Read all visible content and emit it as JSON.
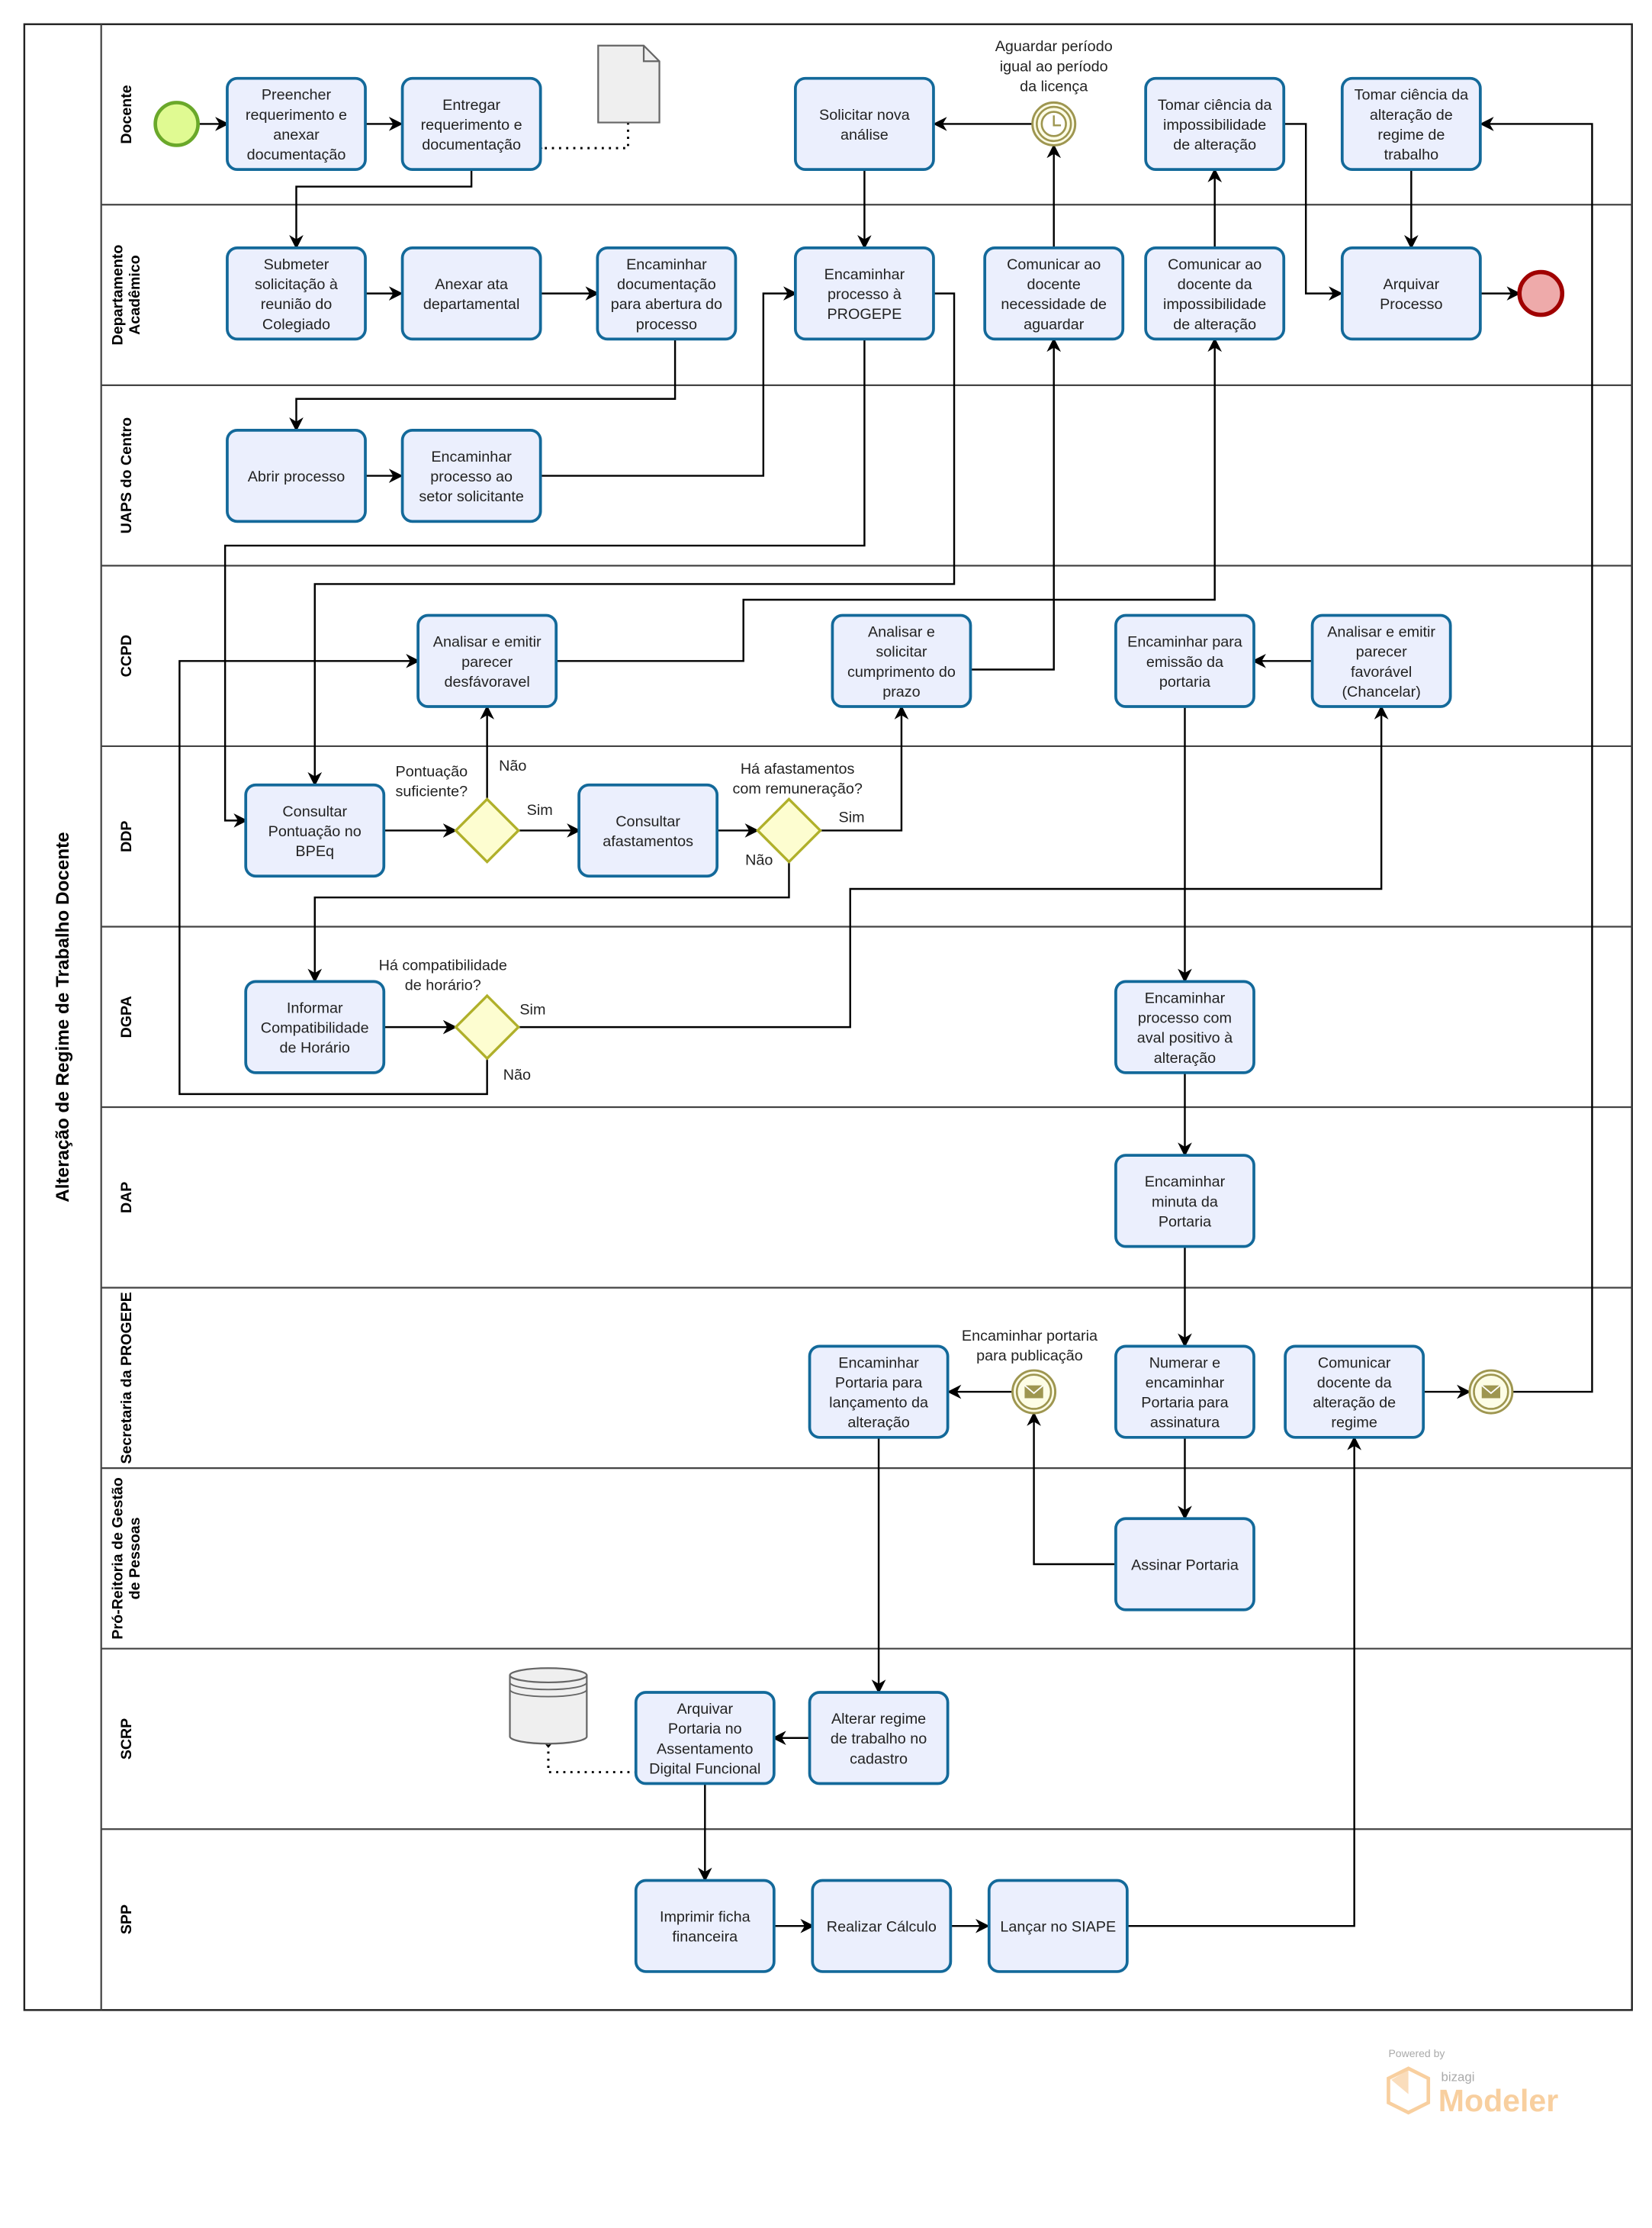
{
  "pool": {
    "title": "Alteração de Regime de Trabalho Docente"
  },
  "lanes": [
    {
      "name": [
        "Docente"
      ]
    },
    {
      "name": [
        "Departamento",
        "Acadêmico"
      ]
    },
    {
      "name": [
        "UAPS do Centro"
      ]
    },
    {
      "name": [
        "CCPD"
      ]
    },
    {
      "name": [
        "DDP"
      ]
    },
    {
      "name": [
        "DGPA"
      ]
    },
    {
      "name": [
        "DAP"
      ]
    },
    {
      "name": [
        "Secretaria da PROGEPE"
      ]
    },
    {
      "name": [
        "Pró-Reitoria de Gestão",
        "de Pessoas"
      ]
    },
    {
      "name": [
        "SCRP"
      ]
    },
    {
      "name": [
        "SPP"
      ]
    }
  ],
  "tasks": [
    {
      "id": "t1",
      "lines": [
        "Preencher",
        "requerimento e",
        "anexar",
        "documentação"
      ]
    },
    {
      "id": "t2",
      "lines": [
        "Entregar",
        "requerimento e",
        "documentação"
      ]
    },
    {
      "id": "t3",
      "lines": [
        "Solicitar nova",
        "análise"
      ]
    },
    {
      "id": "t4",
      "lines": [
        "Tomar ciência da",
        "impossibilidade",
        "de alteração"
      ]
    },
    {
      "id": "t5",
      "lines": [
        "Tomar ciência da",
        "alteração de",
        "regime de",
        "trabalho"
      ]
    },
    {
      "id": "t6",
      "lines": [
        "Submeter",
        "solicitação à",
        "reunião do",
        "Colegiado"
      ]
    },
    {
      "id": "t7",
      "lines": [
        "Anexar ata",
        "departamental"
      ]
    },
    {
      "id": "t8",
      "lines": [
        "Encaminhar",
        "documentação",
        "para abertura do",
        "processo"
      ]
    },
    {
      "id": "t9",
      "lines": [
        "Encaminhar",
        "processo à",
        "PROGEPE"
      ]
    },
    {
      "id": "t10",
      "lines": [
        "Comunicar ao",
        "docente",
        "necessidade de",
        "aguardar"
      ]
    },
    {
      "id": "t11",
      "lines": [
        "Comunicar ao",
        "docente da",
        "impossibilidade",
        "de alteração"
      ]
    },
    {
      "id": "t12",
      "lines": [
        "Arquivar",
        "Processo"
      ]
    },
    {
      "id": "t13",
      "lines": [
        "Abrir processo"
      ]
    },
    {
      "id": "t14",
      "lines": [
        "Encaminhar",
        "processo ao",
        "setor solicitante"
      ]
    },
    {
      "id": "t15",
      "lines": [
        "Analisar e emitir",
        "parecer",
        "desfávoravel"
      ]
    },
    {
      "id": "t16",
      "lines": [
        "Analisar e",
        "solicitar",
        "cumprimento do",
        "prazo"
      ]
    },
    {
      "id": "t17",
      "lines": [
        "Encaminhar para",
        "emissão da",
        "portaria"
      ]
    },
    {
      "id": "t18",
      "lines": [
        "Analisar e emitir",
        "parecer",
        "favorável",
        "(Chancelar)"
      ]
    },
    {
      "id": "t19",
      "lines": [
        "Consultar",
        "Pontuação no",
        "BPEq"
      ]
    },
    {
      "id": "t20",
      "lines": [
        "Consultar",
        "afastamentos"
      ]
    },
    {
      "id": "t21",
      "lines": [
        "Informar",
        "Compatibilidade",
        "de Horário"
      ]
    },
    {
      "id": "t22",
      "lines": [
        "Encaminhar",
        "processo com",
        "aval positivo à",
        "alteração"
      ]
    },
    {
      "id": "t23",
      "lines": [
        "Encaminhar",
        "minuta da",
        "Portaria"
      ]
    },
    {
      "id": "t24",
      "lines": [
        "Encaminhar",
        "Portaria para",
        "lançamento da",
        "alteração"
      ]
    },
    {
      "id": "t25",
      "lines": [
        "Numerar e",
        "encaminhar",
        "Portaria para",
        "assinatura"
      ]
    },
    {
      "id": "t26",
      "lines": [
        "Comunicar",
        "docente da",
        "alteração de",
        "regime"
      ]
    },
    {
      "id": "t27",
      "lines": [
        "Assinar Portaria"
      ]
    },
    {
      "id": "t28",
      "lines": [
        "Arquivar",
        "Portaria no",
        "Assentamento",
        "Digital Funcional"
      ]
    },
    {
      "id": "t29",
      "lines": [
        "Alterar regime",
        "de trabalho no",
        "cadastro"
      ]
    },
    {
      "id": "t30",
      "lines": [
        "Imprimir ficha",
        "financeira"
      ]
    },
    {
      "id": "t31",
      "lines": [
        "Realizar Cálculo"
      ]
    },
    {
      "id": "t32",
      "lines": [
        "Lançar no SIAPE"
      ]
    }
  ],
  "labels": [
    {
      "id": "timer",
      "lines": [
        "Aguardar período",
        "igual ao período",
        "da licença"
      ]
    },
    {
      "id": "g1",
      "lines": [
        "Pontuação",
        "suficiente?"
      ]
    },
    {
      "id": "g2",
      "lines": [
        "Há afastamentos",
        "com remuneração?"
      ]
    },
    {
      "id": "g3",
      "lines": [
        "Há compatibilidade",
        "de horário?"
      ]
    },
    {
      "id": "msg1",
      "lines": [
        "Encaminhar portaria",
        "para publicação"
      ]
    },
    {
      "id": "g1-nao",
      "lines": [
        "Não"
      ]
    },
    {
      "id": "g1-sim",
      "lines": [
        "Sim"
      ]
    },
    {
      "id": "g2-sim",
      "lines": [
        "Sim"
      ]
    },
    {
      "id": "g2-nao",
      "lines": [
        "Não"
      ]
    },
    {
      "id": "g3-sim",
      "lines": [
        "Sim"
      ]
    },
    {
      "id": "g3-nao",
      "lines": [
        "Não"
      ]
    }
  ],
  "logo": {
    "powered": "Powered by",
    "brand": "bizagi",
    "product": "Modeler"
  },
  "colors": {
    "task_fill": "#ebeffd",
    "task_stroke": "#13699a",
    "gateway_fill": "#fdfdd0",
    "gateway_stroke": "#b0b02a",
    "start_fill": "#e0fa92",
    "start_stroke": "#6aa82a",
    "end_fill": "#eeaaaa",
    "end_stroke": "#a00000",
    "event_stroke": "#9e9650",
    "logo": "#f8cf9f"
  }
}
